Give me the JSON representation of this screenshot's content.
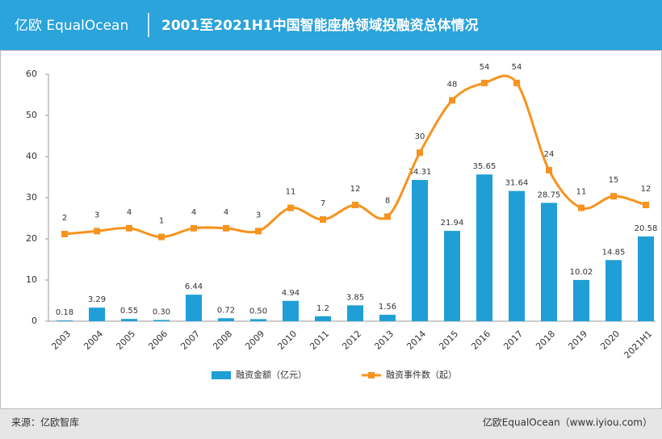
{
  "header": {
    "logo": "亿欧 EqualOcean"
  },
  "chart_data": {
    "type": "bar-line",
    "title": "2001至2021H1中国智能座舱领域投融资总体情况",
    "categories": [
      "2003",
      "2004",
      "2005",
      "2006",
      "2007",
      "2008",
      "2009",
      "2010",
      "2011",
      "2012",
      "2013",
      "2014",
      "2015",
      "2016",
      "2017",
      "2018",
      "2019",
      "2020",
      "2021H1"
    ],
    "series": [
      {
        "name": "融资金额（亿元）",
        "type": "bar",
        "color": "#1f9fd6",
        "values": [
          0.18,
          3.29,
          0.55,
          0.3,
          6.44,
          0.72,
          0.5,
          4.94,
          1.2,
          3.85,
          1.56,
          34.31,
          21.94,
          35.65,
          31.64,
          28.75,
          10.02,
          14.85,
          20.58
        ],
        "value_labels": [
          "0.18",
          "3.29",
          "0.55",
          "0.30",
          "6.44",
          "0.72",
          "0.50",
          "4.94",
          "1.2",
          "3.85",
          "1.56",
          "34.31",
          "21.94",
          "35.65",
          "31.64",
          "28.75",
          "10.02",
          "14.85",
          "20.58"
        ]
      },
      {
        "name": "融资事件数（起）",
        "type": "line",
        "axis": "y2",
        "color": "#f7931e",
        "values": [
          2,
          3,
          4,
          1,
          4,
          4,
          3,
          11,
          7,
          12,
          8,
          30,
          48,
          54,
          54,
          24,
          11,
          15,
          12
        ]
      }
    ],
    "ylim": [
      0,
      60
    ],
    "yticks": [
      0,
      10,
      20,
      30,
      40,
      50,
      60
    ],
    "y2lim": [
      -28,
      57
    ]
  },
  "footer": {
    "source": "来源：亿欧智库",
    "credit": "亿欧EqualOcean（www.iyiou.com）"
  }
}
